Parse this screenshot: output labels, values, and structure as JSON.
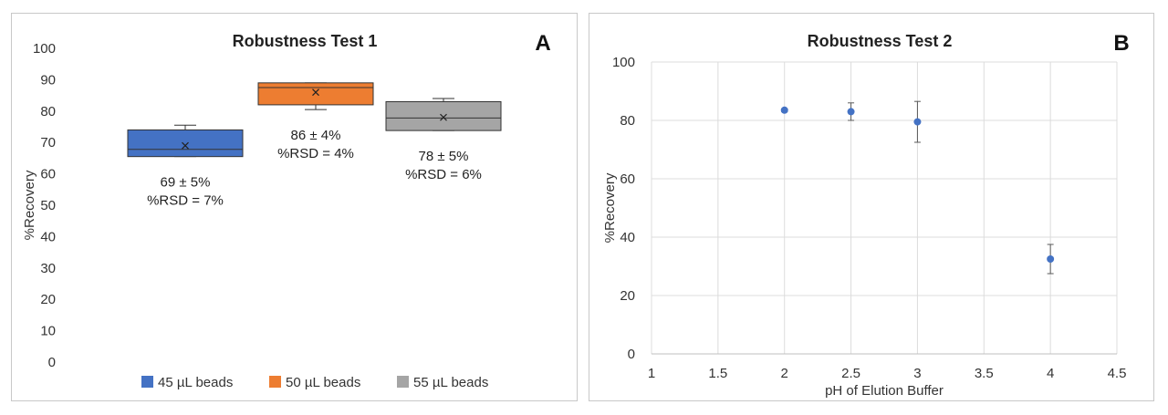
{
  "chart_data": [
    {
      "type": "box",
      "panel_label": "A",
      "title": "Robustness Test 1",
      "ylabel": "%Recovery",
      "xlabel": "",
      "ylim": [
        0,
        100
      ],
      "y_ticks": [
        "0",
        "10",
        "20",
        "30",
        "40",
        "50",
        "60",
        "70",
        "80",
        "90",
        "100"
      ],
      "grid": false,
      "legend_position": "bottom",
      "series": [
        {
          "name": "45 µL beads",
          "color": "#4472c4",
          "min": 65.5,
          "q1": 65.5,
          "median": 67.8,
          "q3": 74,
          "max": 75.5,
          "mean": 69,
          "annotation": [
            "69 ± 5%",
            "%RSD = 7%"
          ]
        },
        {
          "name": "50 µL beads",
          "color": "#ed7d31",
          "min": 80.5,
          "q1": 82,
          "median": 87.5,
          "q3": 89,
          "max": 89,
          "mean": 86,
          "annotation": [
            "86 ± 4%",
            "%RSD = 4%"
          ]
        },
        {
          "name": "55 µL beads",
          "color": "#a5a5a5",
          "min": 73.8,
          "q1": 73.8,
          "median": 77.8,
          "q3": 83,
          "max": 84,
          "mean": 78,
          "annotation": [
            "78 ± 5%",
            "%RSD = 6%"
          ]
        }
      ]
    },
    {
      "type": "scatter",
      "panel_label": "B",
      "title": "Robustness Test 2",
      "xlabel": "pH of Elution Buffer",
      "ylabel": "%Recovery",
      "xlim": [
        1,
        4.5
      ],
      "ylim": [
        0,
        100
      ],
      "x_ticks": [
        "1",
        "1.5",
        "2",
        "2.5",
        "3",
        "3.5",
        "4",
        "4.5"
      ],
      "y_ticks": [
        "0",
        "20",
        "40",
        "60",
        "80",
        "100"
      ],
      "grid": true,
      "color": "#4472c4",
      "points": [
        {
          "x": 2,
          "y": 83.5,
          "err": 0.5
        },
        {
          "x": 2.5,
          "y": 83,
          "err": 3
        },
        {
          "x": 3,
          "y": 79.5,
          "err": 7
        },
        {
          "x": 4,
          "y": 32.5,
          "err": 5
        }
      ]
    }
  ]
}
